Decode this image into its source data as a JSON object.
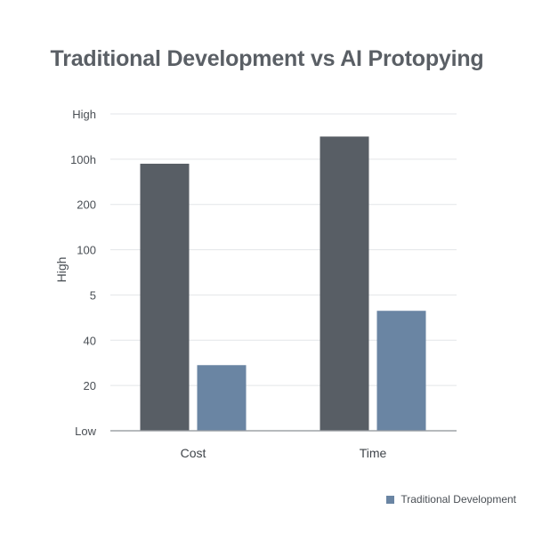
{
  "chart_data": {
    "type": "bar",
    "title": "Traditional Development vs AI Protopying",
    "xlabel": "",
    "ylabel": "High",
    "categories": [
      "Cost",
      "Time"
    ],
    "y_tick_labels": [
      "Low",
      "20",
      "40",
      "5",
      "100",
      "200",
      "100h",
      "High"
    ],
    "ylim": [
      0,
      7
    ],
    "series": [
      {
        "name": "",
        "color": "#585e65",
        "values": [
          5.9,
          6.5
        ]
      },
      {
        "name": "Traditional Development",
        "color": "#6a85a3",
        "values": [
          1.45,
          2.65
        ]
      }
    ],
    "legend": {
      "position": "bottom-right",
      "entries": [
        "Traditional Development"
      ]
    },
    "grid": true
  }
}
